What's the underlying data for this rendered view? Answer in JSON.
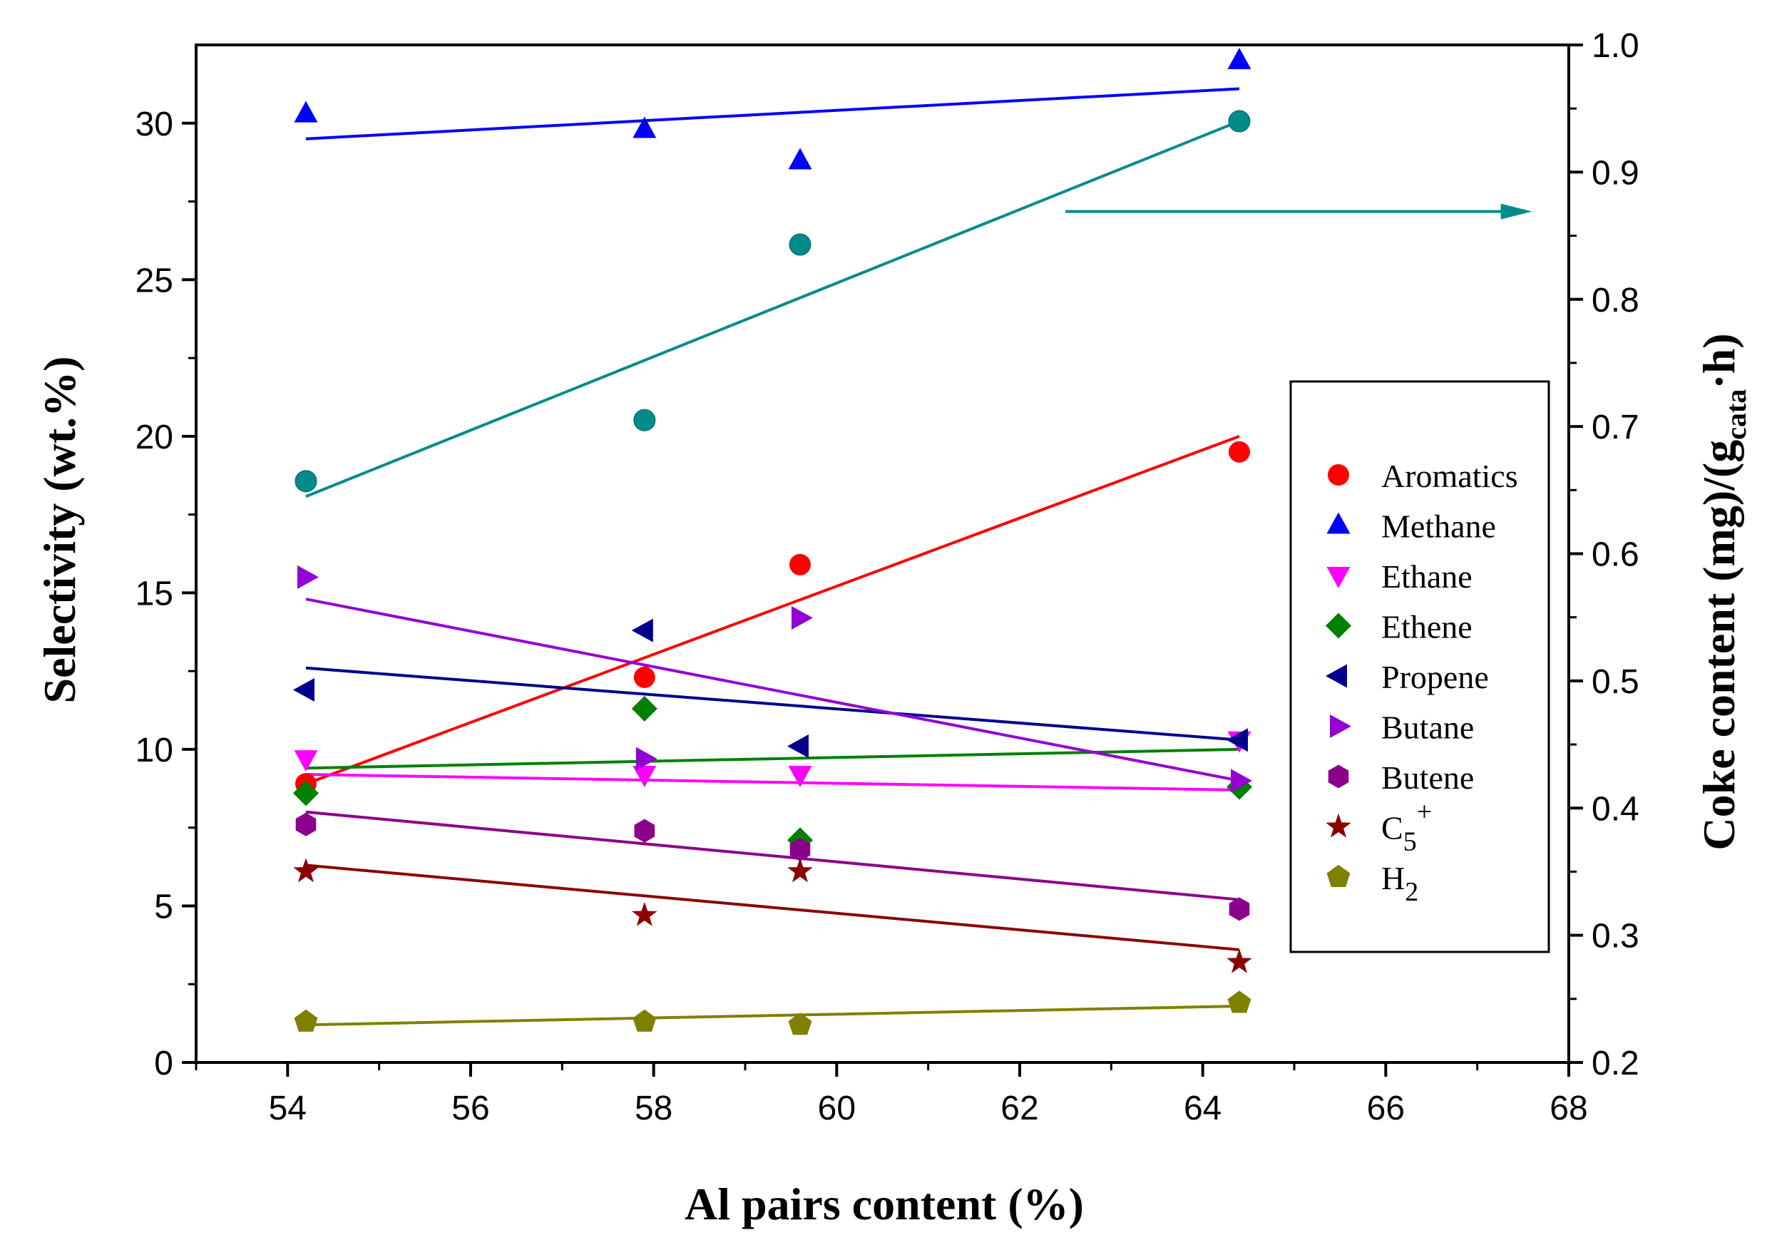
{
  "chart_data": {
    "type": "scatter",
    "xlabel": "Al pairs content (%)",
    "ylabel": "Selectivity (wt.%)",
    "y2label": {
      "prefix": "Coke content (mg)/(g",
      "subscript": "cata",
      "suffix": "·h)"
    },
    "xlim": [
      53,
      68
    ],
    "ylim": [
      0,
      32.5
    ],
    "y2lim": [
      0.2,
      1.0
    ],
    "xticks": [
      54,
      56,
      58,
      60,
      62,
      64,
      66,
      68
    ],
    "yticks": [
      0,
      5,
      10,
      15,
      20,
      25,
      30
    ],
    "y2ticks": [
      "0.2",
      "0.3",
      "0.4",
      "0.5",
      "0.6",
      "0.7",
      "0.8",
      "0.9",
      "1.0"
    ],
    "legend_position": "right-middle",
    "series": [
      {
        "name": "Aromatics",
        "color": "#ff0000",
        "marker": "circle",
        "axis": "left",
        "x": [
          54.2,
          57.9,
          59.6,
          64.4
        ],
        "y": [
          8.9,
          12.3,
          15.9,
          19.5
        ],
        "fit": [
          54.2,
          8.9,
          64.4,
          20.0
        ]
      },
      {
        "name": "Methane",
        "color": "#0000ff",
        "marker": "triangle-up",
        "axis": "left",
        "x": [
          54.2,
          57.9,
          59.6,
          64.4
        ],
        "y": [
          30.3,
          29.8,
          28.8,
          32.0
        ],
        "fit": [
          54.2,
          29.5,
          64.4,
          31.1
        ]
      },
      {
        "name": "Ethane",
        "color": "#ff00ff",
        "marker": "triangle-down",
        "axis": "left",
        "x": [
          54.2,
          57.9,
          59.6,
          64.4
        ],
        "y": [
          9.7,
          9.2,
          9.2,
          10.3
        ],
        "fit": [
          54.2,
          9.2,
          64.4,
          8.7
        ]
      },
      {
        "name": "Ethene",
        "color": "#008000",
        "marker": "diamond",
        "axis": "left",
        "x": [
          54.2,
          57.9,
          59.6,
          64.4
        ],
        "y": [
          8.6,
          11.3,
          7.1,
          8.8
        ],
        "fit": [
          54.2,
          9.4,
          64.4,
          10.0
        ]
      },
      {
        "name": "Propene",
        "color": "#00008b",
        "marker": "triangle-left",
        "axis": "left",
        "x": [
          54.2,
          57.9,
          59.6,
          64.4
        ],
        "y": [
          11.9,
          13.8,
          10.1,
          10.3
        ],
        "fit": [
          54.2,
          12.6,
          64.4,
          10.3
        ]
      },
      {
        "name": "Butane",
        "color": "#9400d3",
        "marker": "triangle-right",
        "axis": "left",
        "x": [
          54.2,
          57.9,
          59.6,
          64.4
        ],
        "y": [
          15.5,
          9.7,
          14.2,
          9.0
        ],
        "fit": [
          54.2,
          14.8,
          64.4,
          9.0
        ]
      },
      {
        "name": "Butene",
        "color": "#8b008b",
        "marker": "hexagon",
        "axis": "left",
        "x": [
          54.2,
          57.9,
          59.6,
          64.4
        ],
        "y": [
          7.6,
          7.4,
          6.8,
          4.9
        ],
        "fit": [
          54.2,
          8.0,
          64.4,
          5.2
        ]
      },
      {
        "name": "C",
        "sub": "5",
        "sup": "+",
        "color": "#8b0000",
        "marker": "star",
        "axis": "left",
        "x": [
          54.2,
          57.9,
          59.6,
          64.4
        ],
        "y": [
          6.1,
          4.7,
          6.1,
          3.2
        ],
        "fit": [
          54.2,
          6.3,
          64.4,
          3.6
        ]
      },
      {
        "name": "H",
        "sub": "2",
        "color": "#808000",
        "marker": "pentagon",
        "axis": "left",
        "x": [
          54.2,
          57.9,
          59.6,
          64.4
        ],
        "y": [
          1.3,
          1.3,
          1.2,
          1.9
        ],
        "fit": [
          54.2,
          1.2,
          64.4,
          1.8
        ]
      },
      {
        "name": "Coke content",
        "color": "#008b8b",
        "marker": "circle",
        "axis": "right",
        "legend": false,
        "x": [
          54.2,
          57.9,
          59.6,
          64.4
        ],
        "y": [
          0.657,
          0.705,
          0.843,
          0.94
        ],
        "fit": [
          54.2,
          0.645,
          64.4,
          0.94
        ]
      }
    ],
    "annotations": [
      {
        "type": "arrow",
        "color": "#008b8b",
        "from": [
          62.5,
          0.869
        ],
        "to": [
          67.6,
          0.869
        ],
        "meaning": "coke series uses right axis"
      }
    ]
  }
}
